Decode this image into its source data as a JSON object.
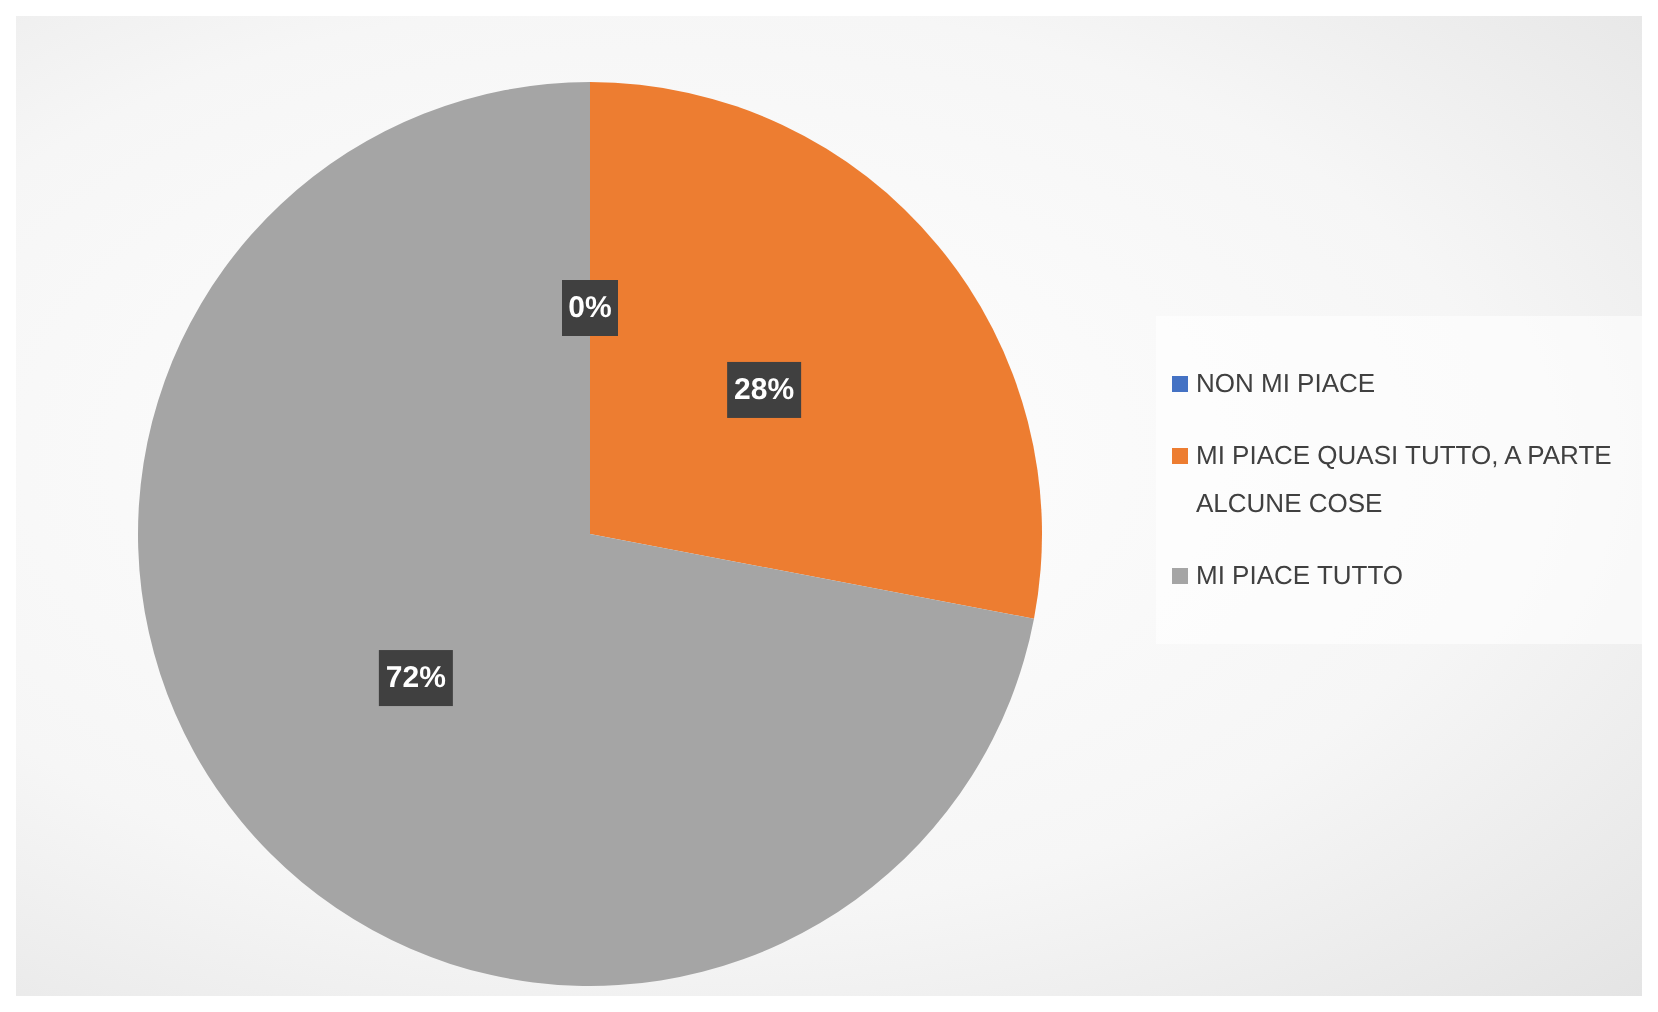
{
  "chart_data": {
    "type": "pie",
    "categories": [
      "NON MI PIACE",
      "MI PIACE QUASI TUTTO, A PARTE ALCUNE COSE",
      "MI PIACE TUTTO"
    ],
    "values": [
      0,
      28,
      72
    ],
    "colors": [
      "#4472c4",
      "#ed7d31",
      "#a5a5a5"
    ],
    "value_labels": [
      "0%",
      "28%",
      "72%"
    ],
    "legend": "right"
  }
}
